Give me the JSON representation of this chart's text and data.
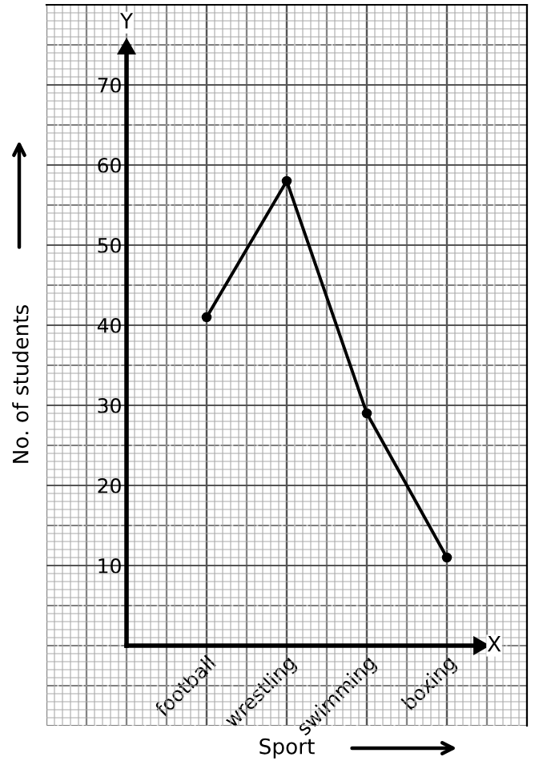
{
  "chart_data": {
    "type": "line",
    "xlabel": "Sport",
    "ylabel": "No. of students",
    "annotations": [
      "Y",
      "X"
    ],
    "categories": [
      "football",
      "wrestling",
      "swimming",
      "boxing"
    ],
    "series": [
      {
        "color": "#000000",
        "values": [
          41,
          58,
          29,
          11
        ]
      }
    ],
    "ylim": [
      -10,
      80
    ],
    "yticks": [
      10,
      20,
      30,
      40,
      50,
      60,
      70
    ],
    "grid": true,
    "marker": "circle",
    "line_style": "solid"
  }
}
